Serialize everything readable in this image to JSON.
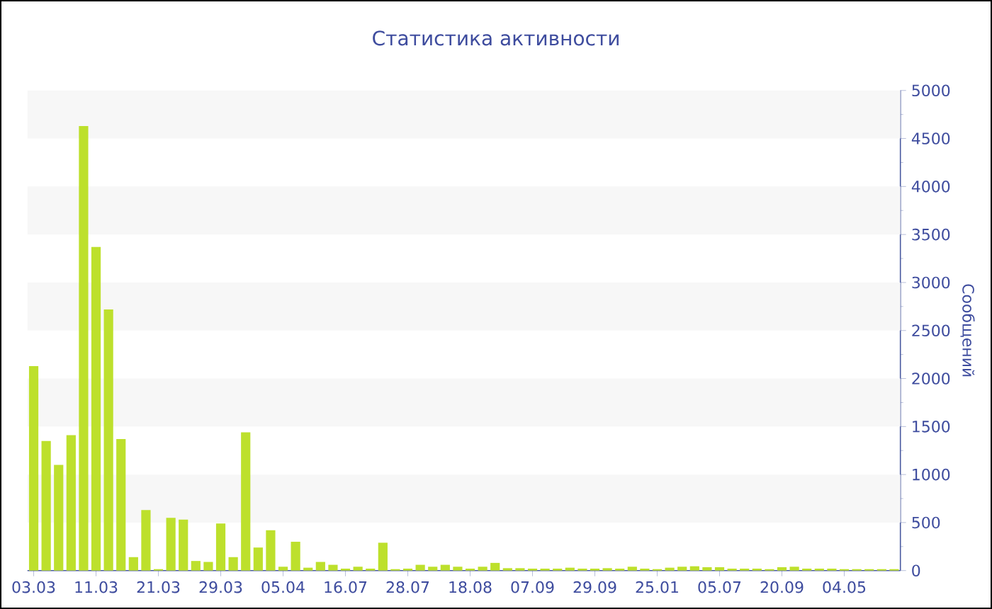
{
  "chart_data": {
    "type": "bar",
    "title": "Статистика активности",
    "ylabel": "Сообщений",
    "categories": [
      "03.03",
      null,
      null,
      null,
      null,
      "11.03",
      null,
      null,
      null,
      null,
      "21.03",
      null,
      null,
      null,
      null,
      "29.03",
      null,
      null,
      null,
      null,
      "05.04",
      null,
      null,
      null,
      null,
      "16.07",
      null,
      null,
      null,
      null,
      "28.07",
      null,
      null,
      null,
      null,
      "18.08",
      null,
      null,
      null,
      null,
      "07.09",
      null,
      null,
      null,
      null,
      "29.09",
      null,
      null,
      null,
      null,
      "25.01",
      null,
      null,
      null,
      null,
      "05.07",
      null,
      null,
      null,
      null,
      "20.09",
      null,
      null,
      null,
      null,
      "04.05",
      null,
      null,
      null,
      null
    ],
    "values": [
      2130,
      1350,
      1100,
      1410,
      4630,
      3370,
      2720,
      1370,
      140,
      630,
      15,
      550,
      530,
      100,
      90,
      490,
      140,
      1440,
      240,
      420,
      40,
      300,
      30,
      90,
      60,
      20,
      40,
      20,
      290,
      15,
      20,
      60,
      40,
      60,
      40,
      20,
      40,
      80,
      25,
      25,
      20,
      20,
      20,
      30,
      20,
      20,
      25,
      20,
      40,
      20,
      15,
      30,
      40,
      45,
      35,
      35,
      20,
      20,
      20,
      15,
      35,
      40,
      20,
      20,
      20,
      15,
      15,
      15,
      15,
      15
    ],
    "color": "#bde02c",
    "ylim": [
      0,
      5000
    ],
    "yticks": [
      0,
      500,
      1000,
      1500,
      2000,
      2500,
      3000,
      3500,
      4000,
      4500,
      5000
    ],
    "bands": [
      {
        "axis": "y",
        "from": 500,
        "to": 1000,
        "color": "#f7f7f7"
      },
      {
        "axis": "y",
        "from": 1500,
        "to": 2000,
        "color": "#f7f7f7"
      },
      {
        "axis": "y",
        "from": 2500,
        "to": 3000,
        "color": "#f7f7f7"
      },
      {
        "axis": "y",
        "from": 3500,
        "to": 4000,
        "color": "#f7f7f7"
      },
      {
        "axis": "y",
        "from": 4500,
        "to": 5000,
        "color": "#f7f7f7"
      }
    ]
  }
}
